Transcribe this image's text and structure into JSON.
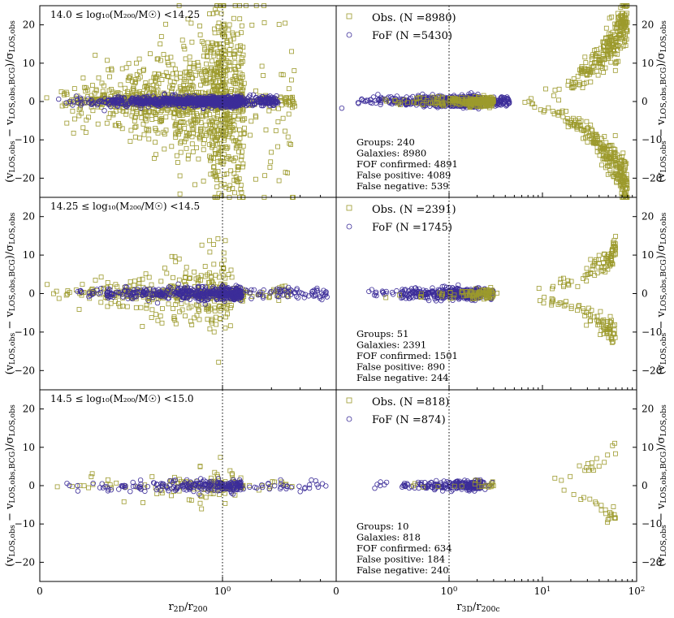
{
  "colors": {
    "obs": "#9c9a2c",
    "fof": "#3c2d99"
  },
  "chart_data": {
    "type": "scatter",
    "x_axes": [
      {
        "label_main": "r",
        "label_sub": "2D",
        "label_rest": "/r",
        "label_sub2": "200",
        "xlim": [
          0,
          5
        ],
        "ticks": [
          {
            "value": 0,
            "label": "0"
          },
          {
            "value": 1,
            "label": "10",
            "exp": "0"
          }
        ]
      },
      {
        "label_main": "r",
        "label_sub": "3D",
        "label_rest": "/r",
        "label_sub2": "200c",
        "xlim": [
          0,
          100
        ],
        "ticks": [
          {
            "value": 0,
            "label": "0"
          },
          {
            "value": 1,
            "label": "10",
            "exp": "0"
          },
          {
            "value": 10,
            "label": "10",
            "exp": "1"
          },
          {
            "value": 100,
            "label": "10",
            "exp": "2"
          }
        ]
      }
    ],
    "ylabel": {
      "open": "(v",
      "sub1": "LOS,obs",
      "minus": " − v",
      "sub2": "LOS,obs,BCG",
      "mid": ")/σ",
      "sub3": "LOS,obs"
    },
    "ylim": [
      -25,
      25
    ],
    "yticks": [
      -20,
      -10,
      0,
      10,
      20
    ],
    "vline_x": 1,
    "panels": [
      {
        "title": "14.0 ≤ log₁₀(M₂₀₀/M☉) <14.25",
        "legend": [
          {
            "series": "obs",
            "label": "Obs. (N =8980)"
          },
          {
            "series": "fof",
            "label": "FoF (N =5430)"
          }
        ],
        "stats": [
          "Groups: 240",
          "Galaxies: 8980",
          "FOF confirmed: 4891",
          "False positive: 4089",
          "False negative: 539"
        ]
      },
      {
        "title": "14.25 ≤ log₁₀(M₂₀₀/M☉) <14.5",
        "legend": [
          {
            "series": "obs",
            "label": "Obs. (N =2391)"
          },
          {
            "series": "fof",
            "label": "FoF (N =1745)"
          }
        ],
        "stats": [
          "Groups: 51",
          "Galaxies: 2391",
          "FOF confirmed: 1501",
          "False positive: 890",
          "False negative: 244"
        ]
      },
      {
        "title": "14.5 ≤ log₁₀(M₂₀₀/M☉) <15.0",
        "legend": [
          {
            "series": "obs",
            "label": "Obs. (N =818)"
          },
          {
            "series": "fof",
            "label": "FoF (N =874)"
          }
        ],
        "stats": [
          "Groups: 10",
          "Galaxies: 818",
          "FOF confirmed: 634",
          "False positive: 184",
          "False negative: 240"
        ]
      }
    ]
  }
}
